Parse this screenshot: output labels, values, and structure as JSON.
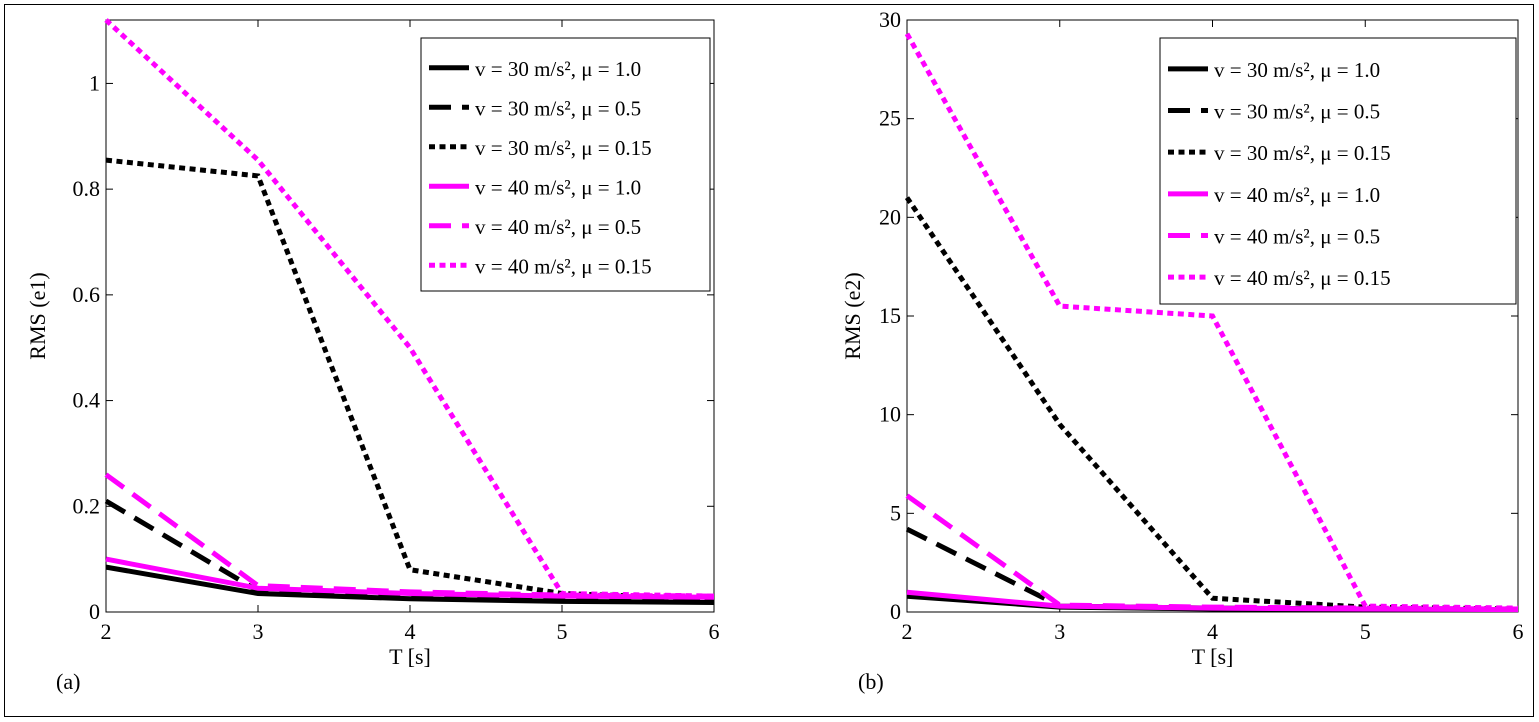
{
  "chart_data": [
    {
      "type": "line",
      "panel_label": "(a)",
      "xlabel": "T [s]",
      "ylabel": "RMS (e1)",
      "xlim": [
        2,
        6
      ],
      "ylim": [
        0,
        1.12
      ],
      "xticks": [
        "2",
        "3",
        "4",
        "5",
        "6"
      ],
      "yticks": [
        "0",
        "0.2",
        "0.4",
        "0.6",
        "0.8",
        "1"
      ],
      "legend_position": "top-right",
      "x": [
        2,
        3,
        4,
        5,
        6
      ],
      "series": [
        {
          "name": "v = 30 m/s², μ = 1.0",
          "color": "#000000",
          "style": "solid",
          "values": [
            0.085,
            0.035,
            0.025,
            0.02,
            0.018
          ]
        },
        {
          "name": "v = 30 m/s², μ = 0.5",
          "color": "#000000",
          "style": "dashed",
          "values": [
            0.21,
            0.04,
            0.03,
            0.025,
            0.022
          ]
        },
        {
          "name": "v = 30 m/s², μ = 0.15",
          "color": "#000000",
          "style": "dotted",
          "values": [
            0.855,
            0.825,
            0.08,
            0.035,
            0.025
          ]
        },
        {
          "name": "v = 40 m/s², μ = 1.0",
          "color": "#ff00ff",
          "style": "solid",
          "values": [
            0.1,
            0.045,
            0.035,
            0.03,
            0.028
          ]
        },
        {
          "name": "v = 40 m/s², μ = 0.5",
          "color": "#ff00ff",
          "style": "dashed",
          "values": [
            0.26,
            0.05,
            0.038,
            0.032,
            0.03
          ]
        },
        {
          "name": "v = 40 m/s², μ = 0.15",
          "color": "#ff00ff",
          "style": "dotted",
          "values": [
            1.12,
            0.855,
            0.5,
            0.035,
            0.03
          ]
        }
      ]
    },
    {
      "type": "line",
      "panel_label": "(b)",
      "xlabel": "T [s]",
      "ylabel": "RMS (e2)",
      "xlim": [
        2,
        6
      ],
      "ylim": [
        0,
        30
      ],
      "xticks": [
        "2",
        "3",
        "4",
        "5",
        "6"
      ],
      "yticks": [
        "0",
        "5",
        "10",
        "15",
        "20",
        "25",
        "30"
      ],
      "legend_position": "top-right",
      "x": [
        2,
        3,
        4,
        5,
        6
      ],
      "series": [
        {
          "name": "v = 30 m/s², μ = 1.0",
          "color": "#000000",
          "style": "solid",
          "values": [
            0.8,
            0.25,
            0.15,
            0.1,
            0.1
          ]
        },
        {
          "name": "v = 30 m/s², μ = 0.5",
          "color": "#000000",
          "style": "dashed",
          "values": [
            4.2,
            0.3,
            0.2,
            0.15,
            0.1
          ]
        },
        {
          "name": "v = 30 m/s², μ = 0.15",
          "color": "#000000",
          "style": "dotted",
          "values": [
            21,
            9.5,
            0.7,
            0.25,
            0.15
          ]
        },
        {
          "name": "v = 40 m/s², μ = 1.0",
          "color": "#ff00ff",
          "style": "solid",
          "values": [
            1.0,
            0.3,
            0.2,
            0.15,
            0.12
          ]
        },
        {
          "name": "v = 40 m/s², μ = 0.5",
          "color": "#ff00ff",
          "style": "dashed",
          "values": [
            5.9,
            0.35,
            0.25,
            0.2,
            0.15
          ]
        },
        {
          "name": "v = 40 m/s², μ = 0.15",
          "color": "#ff00ff",
          "style": "dotted",
          "values": [
            29.3,
            15.5,
            15.0,
            0.3,
            0.2
          ]
        }
      ]
    }
  ]
}
